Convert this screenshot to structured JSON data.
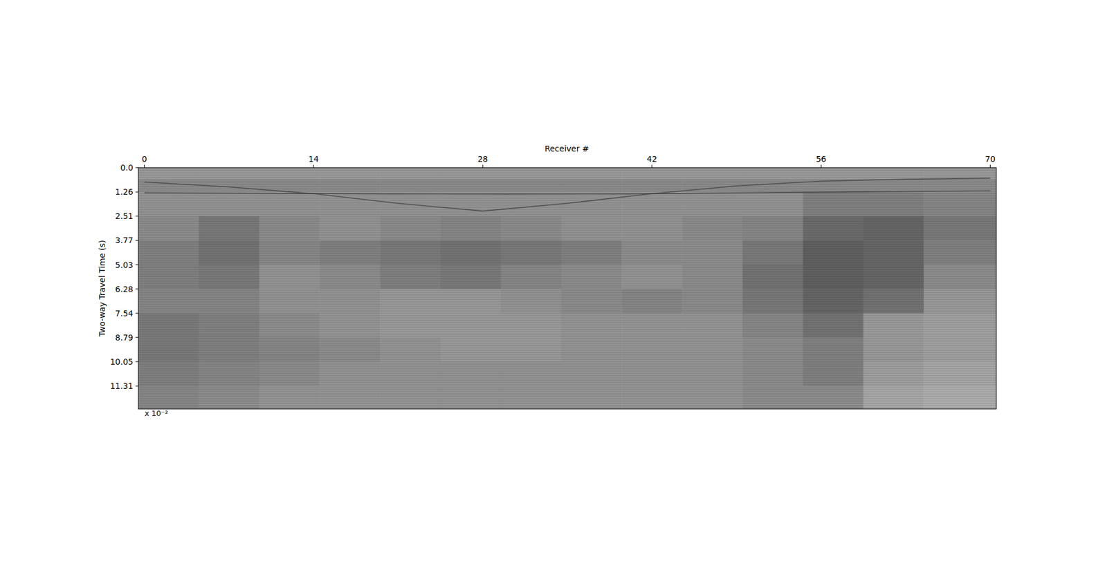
{
  "chart_data": {
    "type": "heatmap",
    "xlabel": "Receiver #",
    "ylabel": "Two-way Travel Time (s)",
    "offset_label": "x 10⁻²",
    "xlim": [
      -0.5,
      70.5
    ],
    "ylim": [
      12.5,
      0
    ],
    "xticks": [
      0,
      14,
      28,
      42,
      56,
      70
    ],
    "yticks": [
      {
        "value": 0,
        "label": "0.0"
      },
      1.26,
      2.51,
      3.77,
      5.03,
      6.28,
      7.54,
      8.79,
      10.05,
      11.31
    ],
    "color": "gray",
    "clim": [
      -1,
      1
    ],
    "x_edges": [
      -0.5,
      4.5,
      9.5,
      14.5,
      19.5,
      24.5,
      29.5,
      34.5,
      39.5,
      44.5,
      49.5,
      54.5,
      59.5,
      64.5,
      70.5
    ],
    "y_edges": [
      0,
      0.6,
      1.26,
      2.51,
      3.77,
      5.03,
      6.28,
      7.54,
      8.79,
      10.05,
      11.31,
      12.5
    ],
    "z": [
      [
        0.2,
        0.2,
        0.2,
        0.2,
        0.2,
        0.2,
        0.2,
        0.2,
        0.2,
        0.2,
        0.2,
        0.2,
        0.2,
        0.2
      ],
      [
        0.08,
        0.08,
        0.08,
        0.08,
        0.08,
        0.08,
        0.08,
        0.08,
        0.08,
        0.08,
        0.08,
        0.08,
        0.08,
        0.08
      ],
      [
        0.15,
        0.15,
        0.15,
        0.15,
        0.15,
        0.15,
        0.15,
        0.15,
        0.15,
        0.15,
        0.15,
        0.0,
        0.0,
        0.05
      ],
      [
        0.1,
        -0.05,
        0.1,
        0.15,
        0.1,
        0.05,
        0.1,
        0.15,
        0.15,
        0.1,
        0.05,
        -0.15,
        -0.2,
        -0.05
      ],
      [
        0,
        -0.1,
        0.05,
        0,
        -0.05,
        -0.1,
        -0.05,
        0,
        0.1,
        0.1,
        -0.05,
        -0.25,
        -0.2,
        0
      ],
      [
        0,
        -0.05,
        0.15,
        0.1,
        0,
        -0.05,
        0.05,
        0.1,
        0.15,
        0.1,
        -0.1,
        -0.25,
        -0.2,
        0.1
      ],
      [
        0.05,
        0.05,
        0.15,
        0.15,
        0.2,
        0.2,
        0.15,
        0.1,
        0.05,
        0.1,
        -0.05,
        -0.2,
        -0.1,
        0.2
      ],
      [
        -0.05,
        0,
        0.1,
        0.15,
        0.2,
        0.2,
        0.2,
        0.15,
        0.15,
        0.15,
        0.05,
        -0.1,
        0.2,
        0.25
      ],
      [
        -0.05,
        0,
        0.05,
        0.1,
        0.15,
        0.2,
        0.2,
        0.15,
        0.15,
        0.15,
        0.1,
        0,
        0.2,
        0.25
      ],
      [
        0,
        0.05,
        0.1,
        0.15,
        0.15,
        0.15,
        0.15,
        0.15,
        0.15,
        0.15,
        0.1,
        0,
        0.25,
        0.3
      ],
      [
        0.05,
        0.1,
        0.15,
        0.15,
        0.15,
        0.15,
        0.15,
        0.15,
        0.15,
        0.15,
        0.1,
        0.1,
        0.3,
        0.35
      ]
    ],
    "events": [
      {
        "x": [
          0,
          7,
          14,
          21,
          28,
          35,
          42,
          49,
          56,
          63,
          70
        ],
        "y": [
          0.75,
          1.0,
          1.35,
          1.85,
          2.25,
          1.85,
          1.35,
          0.95,
          0.7,
          0.6,
          0.55
        ]
      },
      {
        "x": [
          0,
          10,
          20,
          30,
          40,
          50,
          60,
          70
        ],
        "y": [
          1.3,
          1.33,
          1.36,
          1.37,
          1.36,
          1.3,
          1.25,
          1.2
        ]
      }
    ]
  }
}
